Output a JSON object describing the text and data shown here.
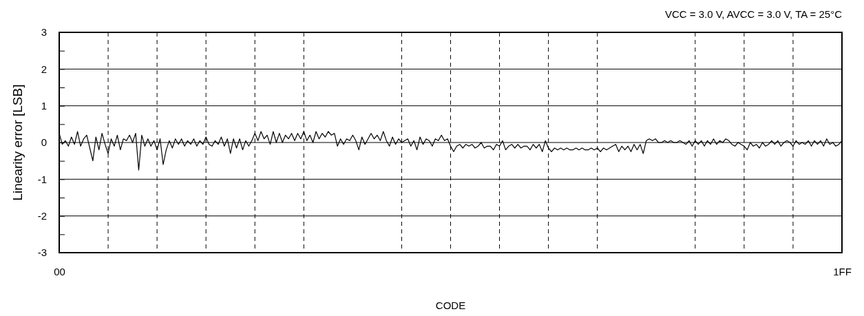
{
  "chart_data": {
    "type": "line",
    "xlabel": "CODE",
    "ylabel": "Linearity error  [LSB]",
    "annotations": [
      "VCC = 3.0 V, AVCC = 3.0 V, TA = 25°C"
    ],
    "categories": [
      "00",
      null,
      null,
      null,
      null,
      null,
      null,
      null,
      null,
      null,
      null,
      null,
      null,
      null,
      null,
      null,
      null,
      null,
      null,
      null,
      null,
      null,
      null,
      null,
      null,
      null,
      null,
      null,
      null,
      null,
      null,
      null,
      null,
      null,
      null,
      null,
      null,
      null,
      null,
      null,
      null,
      null,
      null,
      null,
      null,
      null,
      null,
      null,
      null,
      null,
      null,
      null,
      null,
      null,
      null,
      null,
      null,
      null,
      null,
      null,
      null,
      null,
      null,
      null,
      null,
      null,
      null,
      null,
      null,
      null,
      null,
      null,
      null,
      null,
      null,
      null,
      null,
      null,
      null,
      null,
      null,
      null,
      null,
      null,
      null,
      null,
      null,
      null,
      null,
      null,
      null,
      null,
      null,
      null,
      null,
      null,
      null,
      null,
      null,
      null,
      null,
      null,
      null,
      null,
      null,
      null,
      null,
      null,
      null,
      null,
      null,
      null,
      null,
      null,
      null,
      null,
      null,
      null,
      null,
      null,
      null,
      null,
      null,
      null,
      null,
      null,
      null,
      null,
      null,
      null,
      null,
      null,
      null,
      null,
      null,
      null,
      null,
      null,
      null,
      null,
      null,
      null,
      null,
      null,
      null,
      null,
      null,
      null,
      null,
      null,
      null,
      null,
      null,
      null,
      null,
      null,
      null,
      null,
      null,
      null,
      null,
      null,
      null,
      null,
      null,
      null,
      null,
      null,
      null,
      null,
      null,
      null,
      null,
      null,
      null,
      null,
      null,
      null,
      null,
      null,
      null,
      null,
      null,
      null,
      null,
      null,
      null,
      null,
      null,
      null,
      null,
      null,
      null,
      null,
      null,
      null,
      null,
      null,
      null,
      null,
      null,
      null,
      null,
      null,
      null,
      null,
      null,
      null,
      null,
      null,
      null,
      null,
      null,
      null,
      null,
      null,
      null,
      null,
      null,
      null,
      null,
      null,
      null,
      null,
      null,
      null,
      null,
      null,
      null,
      null,
      null,
      null,
      null,
      null,
      null,
      null,
      null,
      null,
      null,
      null,
      null,
      null,
      null,
      null,
      null,
      null,
      null,
      null,
      null,
      null,
      null,
      null,
      null,
      null,
      null,
      null,
      "1FF"
    ],
    "ylim": [
      -3,
      3
    ],
    "yticks": [
      -3,
      {
        "value": -2.5,
        "label": null
      },
      -2,
      {
        "value": -1.5,
        "label": null
      },
      -1,
      {
        "value": -0.5,
        "label": null
      },
      0,
      {
        "value": 0.5,
        "label": null
      },
      1,
      {
        "value": 1.5,
        "label": null
      },
      2,
      {
        "value": 2.5,
        "label": null
      },
      3
    ],
    "grid": "y",
    "line_style": "solid",
    "marker": "none",
    "series": [
      {
        "color": "#000000",
        "values": [
          0.25,
          -0.05,
          0.05,
          -0.1,
          0.15,
          -0.05,
          0.3,
          -0.1,
          0.1,
          0.2,
          -0.15,
          -0.5,
          0.15,
          -0.2,
          0.25,
          -0.05,
          -0.3,
          0.1,
          -0.1,
          0.2,
          -0.2,
          0.1,
          0.05,
          0.2,
          0,
          0.25,
          -0.75,
          0.2,
          -0.1,
          0.1,
          -0.1,
          0.05,
          -0.2,
          0.1,
          -0.6,
          -0.2,
          0.05,
          -0.15,
          0.1,
          -0.05,
          0.1,
          -0.1,
          0.05,
          -0.05,
          0.1,
          -0.1,
          0.05,
          -0.05,
          0.15,
          -0.05,
          -0.1,
          0.05,
          -0.05,
          0.15,
          -0.1,
          0.1,
          -0.3,
          0.1,
          -0.15,
          0.1,
          -0.2,
          0.05,
          -0.1,
          0.05,
          0.25,
          0.05,
          0.3,
          0.1,
          0.2,
          -0.05,
          0.3,
          0,
          0.25,
          0,
          0.2,
          0.1,
          0.25,
          0.05,
          0.25,
          0.1,
          0.3,
          0.05,
          0.2,
          0,
          0.3,
          0.1,
          0.25,
          0.15,
          0.3,
          0.2,
          0.25,
          -0.1,
          0.1,
          -0.05,
          0.1,
          0.05,
          0.2,
          0.05,
          -0.2,
          0.15,
          -0.05,
          0.1,
          0.25,
          0.1,
          0.2,
          0.05,
          0.3,
          0.05,
          -0.1,
          0.15,
          -0.05,
          0.1,
          0,
          0.05,
          0.1,
          -0.1,
          0.05,
          -0.2,
          0.15,
          -0.05,
          0.1,
          0.05,
          -0.1,
          0.1,
          0.05,
          0.2,
          0.05,
          0.1,
          -0.1,
          -0.25,
          -0.1,
          -0.05,
          -0.15,
          -0.05,
          -0.1,
          -0.05,
          -0.15,
          -0.1,
          0,
          -0.15,
          -0.1,
          -0.1,
          -0.2,
          -0.05,
          -0.1,
          0.05,
          -0.2,
          -0.1,
          -0.05,
          -0.15,
          -0.05,
          -0.15,
          -0.1,
          -0.1,
          -0.2,
          -0.05,
          -0.15,
          -0.05,
          -0.25,
          0.05,
          -0.15,
          -0.25,
          -0.15,
          -0.2,
          -0.15,
          -0.2,
          -0.15,
          -0.2,
          -0.2,
          -0.15,
          -0.2,
          -0.15,
          -0.2,
          -0.2,
          -0.15,
          -0.2,
          -0.15,
          -0.25,
          -0.15,
          -0.2,
          -0.15,
          -0.1,
          -0.05,
          -0.25,
          -0.1,
          -0.2,
          -0.1,
          -0.25,
          -0.05,
          -0.2,
          -0.05,
          -0.3,
          0.05,
          0.1,
          0.05,
          0.1,
          0,
          0,
          0.05,
          0,
          0.05,
          0,
          0,
          0.05,
          0,
          -0.05,
          0.05,
          -0.1,
          0.05,
          -0.05,
          0.05,
          -0.1,
          0.05,
          -0.05,
          0.1,
          -0.05,
          0.05,
          0,
          0.1,
          0.05,
          -0.05,
          -0.1,
          0,
          -0.05,
          -0.1,
          -0.2,
          0,
          -0.1,
          -0.05,
          -0.15,
          0,
          -0.1,
          -0.05,
          0.05,
          -0.05,
          0.05,
          -0.1,
          0,
          0.05,
          0,
          -0.1,
          0.05,
          -0.05,
          0,
          -0.05,
          0.05,
          -0.1,
          0.05,
          -0.05,
          0.05,
          -0.1,
          0.1,
          -0.05,
          0,
          -0.1,
          -0.05,
          0.05
        ]
      }
    ]
  }
}
